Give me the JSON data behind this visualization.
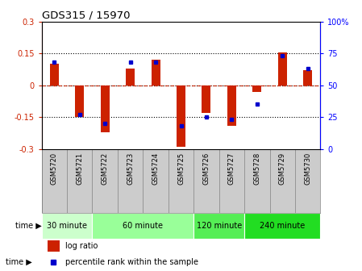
{
  "title": "GDS315 / 15970",
  "samples": [
    "GSM5720",
    "GSM5721",
    "GSM5722",
    "GSM5723",
    "GSM5724",
    "GSM5725",
    "GSM5726",
    "GSM5727",
    "GSM5728",
    "GSM5729",
    "GSM5730"
  ],
  "log_ratio": [
    0.1,
    -0.15,
    -0.22,
    0.08,
    0.12,
    -0.29,
    -0.13,
    -0.19,
    -0.03,
    0.155,
    0.07
  ],
  "percentile": [
    68,
    27,
    20,
    68,
    68,
    18,
    25,
    23,
    35,
    73,
    63
  ],
  "ylim_left": [
    -0.3,
    0.3
  ],
  "ylim_right": [
    0,
    100
  ],
  "yticks_left": [
    -0.3,
    -0.15,
    0,
    0.15,
    0.3
  ],
  "yticks_right": [
    0,
    25,
    50,
    75,
    100
  ],
  "ytick_labels_left": [
    "-0.3",
    "-0.15",
    "0",
    "0.15",
    "0.3"
  ],
  "ytick_labels_right": [
    "0",
    "25",
    "50",
    "75",
    "100%"
  ],
  "hlines_dotted": [
    -0.15,
    0.15
  ],
  "hline_black_dotted_zero": 0.0,
  "hline_red_dashed": 0.0,
  "bar_color": "#cc2200",
  "dot_color": "#0000cc",
  "groups": [
    {
      "label": "30 minute",
      "start": 0,
      "end": 1,
      "color": "#ccffcc"
    },
    {
      "label": "60 minute",
      "start": 2,
      "end": 5,
      "color": "#99ff99"
    },
    {
      "label": "120 minute",
      "start": 6,
      "end": 7,
      "color": "#55ee55"
    },
    {
      "label": "240 minute",
      "start": 8,
      "end": 10,
      "color": "#22dd22"
    }
  ],
  "time_label": "time",
  "legend_log_ratio": "log ratio",
  "legend_percentile": "percentile rank within the sample",
  "bg_color": "#ffffff",
  "plot_bg": "#ffffff",
  "tick_area_color": "#cccccc"
}
